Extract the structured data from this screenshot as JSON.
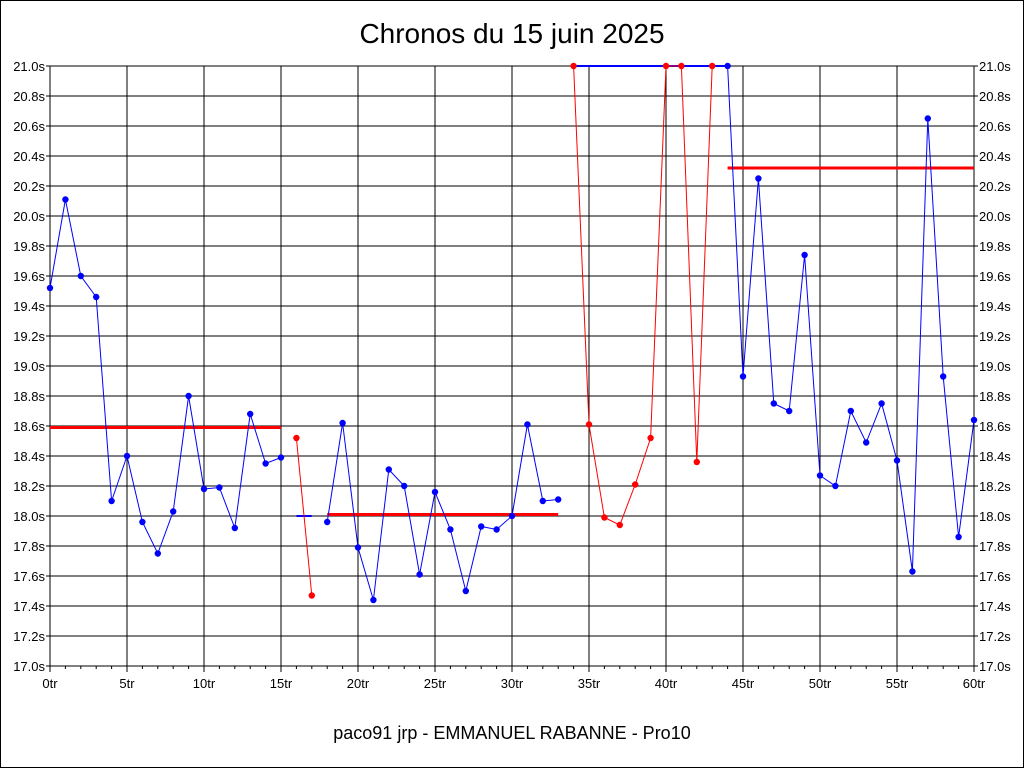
{
  "chart_data": {
    "type": "line",
    "title": "Chronos du 15 juin 2025",
    "subtitle": "paco91 jrp - EMMANUEL RABANNE - Pro10",
    "x_ticks": [
      "0tr",
      "5tr",
      "10tr",
      "15tr",
      "20tr",
      "25tr",
      "30tr",
      "35tr",
      "40tr",
      "45tr",
      "50tr",
      "55tr",
      "60tr"
    ],
    "y_ticks": [
      "17.0s",
      "17.2s",
      "17.4s",
      "17.6s",
      "17.8s",
      "18.0s",
      "18.2s",
      "18.4s",
      "18.6s",
      "18.8s",
      "19.0s",
      "19.2s",
      "19.4s",
      "19.6s",
      "19.8s",
      "20.0s",
      "20.2s",
      "20.4s",
      "20.6s",
      "20.8s",
      "21.0s"
    ],
    "xlim": [
      0,
      60
    ],
    "ylim": [
      17.0,
      21.0
    ],
    "x_minor_step": 1,
    "grid": true,
    "colors": {
      "blue": "#0000ff",
      "red": "#ff0000",
      "grid": "#000000"
    },
    "series": [
      {
        "color": "#0000ff",
        "x": [
          0,
          1,
          2,
          3,
          4,
          5,
          6,
          7,
          8,
          9,
          10,
          11,
          12,
          13,
          14,
          15
        ],
        "y": [
          19.52,
          20.11,
          19.6,
          19.46,
          18.1,
          18.4,
          17.96,
          17.75,
          18.03,
          18.8,
          18.18,
          18.19,
          17.92,
          18.68,
          18.35,
          18.39
        ]
      },
      {
        "color": "#ff0000",
        "x": [
          16,
          17
        ],
        "y": [
          18.52,
          17.47
        ]
      },
      {
        "color": "#0000ff",
        "x": [
          18,
          19,
          20,
          21,
          22,
          23,
          24,
          25,
          26,
          27,
          28,
          29,
          30,
          31,
          32,
          33
        ],
        "y": [
          17.96,
          18.62,
          17.79,
          17.44,
          18.31,
          18.2,
          17.61,
          18.16,
          17.91,
          17.5,
          17.93,
          17.91,
          18.0,
          18.61,
          18.1,
          18.11
        ]
      },
      {
        "color": "#ff0000",
        "x": [
          34,
          35,
          36,
          37,
          38,
          39,
          40,
          41,
          42,
          43
        ],
        "y": [
          21.0,
          18.61,
          17.99,
          17.94,
          18.21,
          18.52,
          21.0,
          21.0,
          18.36,
          21.0
        ]
      },
      {
        "color": "#0000ff",
        "x": [
          44,
          45,
          46,
          47,
          48,
          49,
          50,
          51,
          52,
          53,
          54,
          55,
          56,
          57,
          58,
          59,
          60
        ],
        "y": [
          21.0,
          18.93,
          20.25,
          18.75,
          18.7,
          19.74,
          18.27,
          18.2,
          18.7,
          18.49,
          18.75,
          18.37,
          17.63,
          20.65,
          18.93,
          17.86,
          18.64
        ]
      }
    ],
    "segments": [
      {
        "color": "#0000ff",
        "x": [
          34,
          44
        ],
        "y": [
          21.0,
          21.0
        ],
        "width": 2
      },
      {
        "color": "#0000ff",
        "x": [
          16,
          17
        ],
        "y": [
          18.0,
          18.0
        ],
        "width": 2
      },
      {
        "color": "#ff0000",
        "x": [
          0,
          15
        ],
        "y": [
          18.59,
          18.59
        ],
        "width": 3
      },
      {
        "color": "#ff0000",
        "x": [
          18,
          33
        ],
        "y": [
          18.01,
          18.01
        ],
        "width": 3
      },
      {
        "color": "#ff0000",
        "x": [
          44,
          60
        ],
        "y": [
          20.32,
          20.32
        ],
        "width": 3
      }
    ]
  }
}
